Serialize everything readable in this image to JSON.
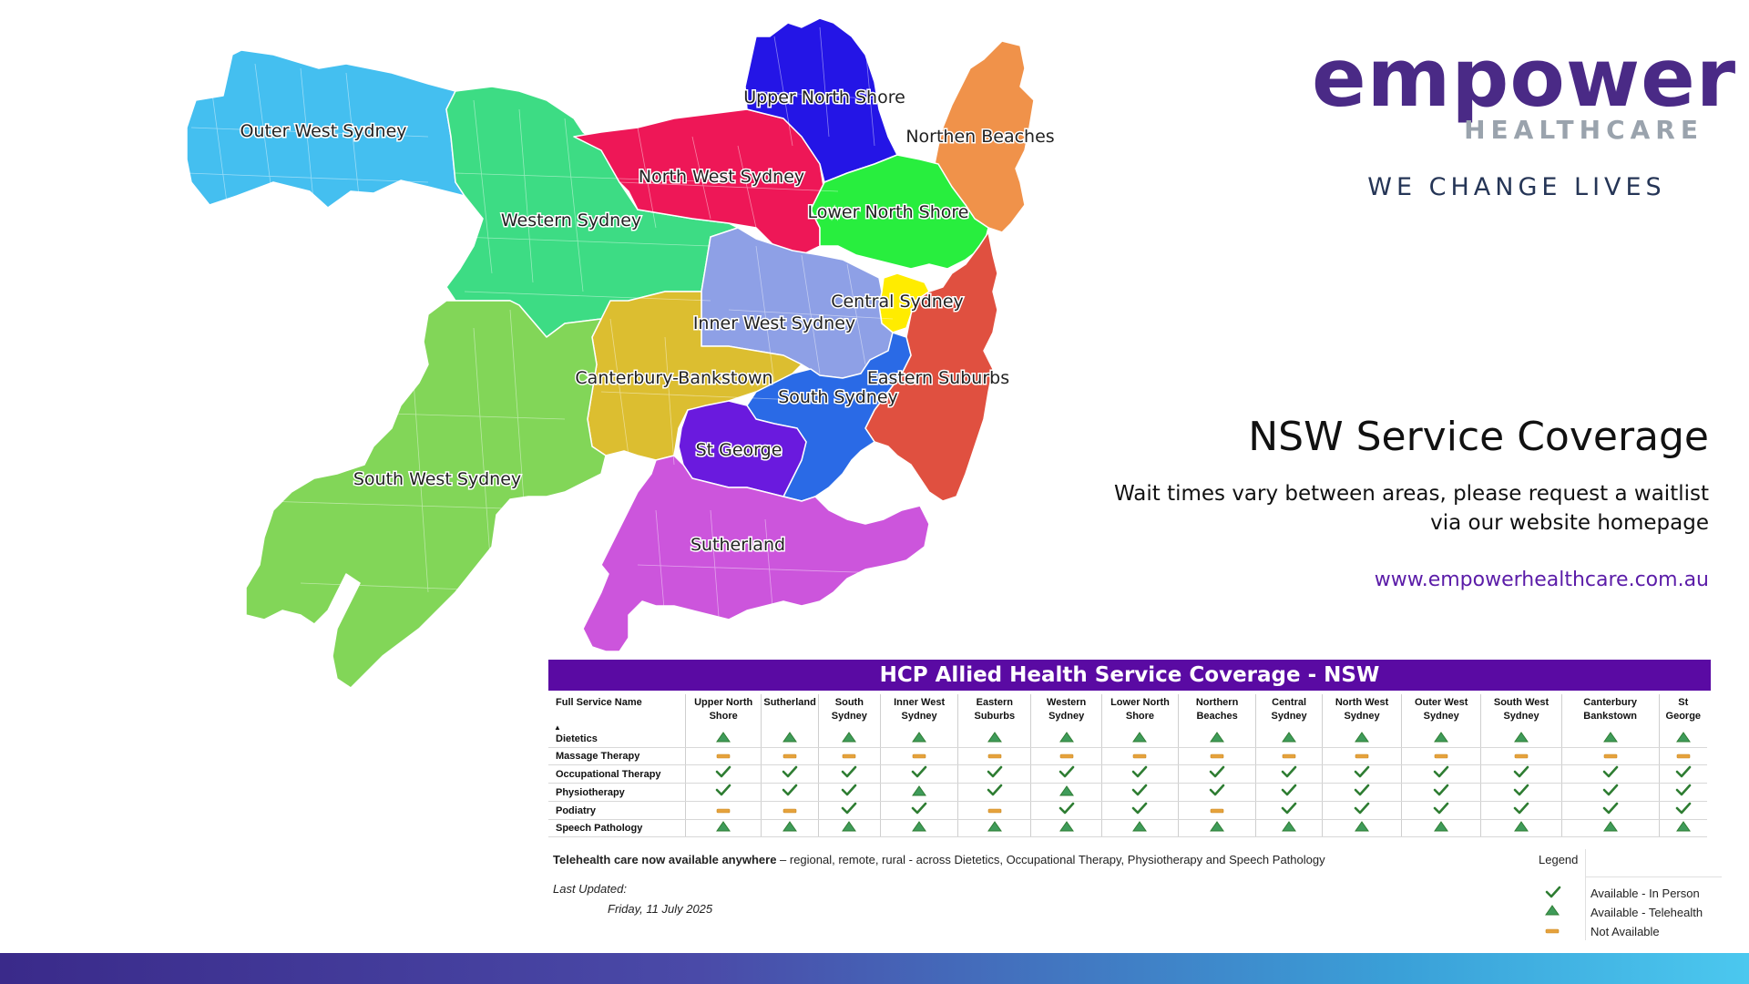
{
  "brand": {
    "logo_word": "empower",
    "logo_sub": "HEALTHCARE",
    "tagline": "WE CHANGE LIVES"
  },
  "map": {
    "regions": [
      {
        "id": "outer-west-sydney",
        "label": "Outer West Sydney",
        "color": "#44bff0"
      },
      {
        "id": "western-sydney",
        "label": "Western Sydney",
        "color": "#3ddc84"
      },
      {
        "id": "north-west-sydney",
        "label": "North West Sydney",
        "color": "#ee1757"
      },
      {
        "id": "upper-north-shore",
        "label": "Upper North Shore",
        "color": "#2415e6"
      },
      {
        "id": "northern-beaches",
        "label": "Northen Beaches",
        "color": "#f0924a"
      },
      {
        "id": "lower-north-shore",
        "label": "Lower North Shore",
        "color": "#28ee3e"
      },
      {
        "id": "central-sydney",
        "label": "Central Sydney",
        "color": "#ffec00"
      },
      {
        "id": "inner-west-sydney",
        "label": "Inner West Sydney",
        "color": "#8ea0e6"
      },
      {
        "id": "eastern-suburbs",
        "label": "Eastern Suburbs",
        "color": "#e05040"
      },
      {
        "id": "south-sydney",
        "label": "South Sydney",
        "color": "#2a6ae6"
      },
      {
        "id": "canterbury-bankstown",
        "label": "Canterbury-Bankstown",
        "color": "#dcbe30"
      },
      {
        "id": "st-george",
        "label": "St George",
        "color": "#6a1ade"
      },
      {
        "id": "south-west-sydney",
        "label": "South West Sydney",
        "color": "#82d658"
      },
      {
        "id": "sutherland",
        "label": "Sutherland",
        "color": "#cc55dc"
      }
    ]
  },
  "info": {
    "headline": "NSW Service Coverage",
    "wait_line1": "Wait times vary between areas, please request a waitlist",
    "wait_line2": "via our website homepage",
    "website": "www.empowerhealthcare.com.au"
  },
  "coverage": {
    "title": "HCP Allied Health Service Coverage - NSW",
    "first_col_header": "Full Service Name",
    "columns": [
      "Upper North Shore",
      "Sutherland",
      "South Sydney",
      "Inner West Sydney",
      "Eastern Suburbs",
      "Western Sydney",
      "Lower North Shore",
      "Northern Beaches",
      "Central Sydney",
      "North West Sydney",
      "Outer West Sydney",
      "South West Sydney",
      "Canterbury Bankstown",
      "St George"
    ],
    "rows": [
      {
        "service": "Dietetics",
        "values": [
          "telehealth",
          "telehealth",
          "telehealth",
          "telehealth",
          "telehealth",
          "telehealth",
          "telehealth",
          "telehealth",
          "telehealth",
          "telehealth",
          "telehealth",
          "telehealth",
          "telehealth",
          "telehealth"
        ]
      },
      {
        "service": "Massage Therapy",
        "values": [
          "not-available",
          "not-available",
          "not-available",
          "not-available",
          "not-available",
          "not-available",
          "not-available",
          "not-available",
          "not-available",
          "not-available",
          "not-available",
          "not-available",
          "not-available",
          "not-available"
        ]
      },
      {
        "service": "Occupational Therapy",
        "values": [
          "in-person",
          "in-person",
          "in-person",
          "in-person",
          "in-person",
          "in-person",
          "in-person",
          "in-person",
          "in-person",
          "in-person",
          "in-person",
          "in-person",
          "in-person",
          "in-person"
        ]
      },
      {
        "service": "Physiotherapy",
        "values": [
          "in-person",
          "in-person",
          "in-person",
          "telehealth",
          "in-person",
          "telehealth",
          "in-person",
          "in-person",
          "in-person",
          "in-person",
          "in-person",
          "in-person",
          "in-person",
          "in-person"
        ]
      },
      {
        "service": "Podiatry",
        "values": [
          "not-available",
          "not-available",
          "in-person",
          "in-person",
          "not-available",
          "in-person",
          "in-person",
          "not-available",
          "in-person",
          "in-person",
          "in-person",
          "in-person",
          "in-person",
          "in-person"
        ]
      },
      {
        "service": "Speech Pathology",
        "values": [
          "telehealth",
          "telehealth",
          "telehealth",
          "telehealth",
          "telehealth",
          "telehealth",
          "telehealth",
          "telehealth",
          "telehealth",
          "telehealth",
          "telehealth",
          "telehealth",
          "telehealth",
          "telehealth"
        ]
      }
    ],
    "colors": {
      "in-person": "#2e7d32",
      "telehealth": "#2e7d32",
      "not-available": "#e6a23c"
    }
  },
  "notes": {
    "telehealth_bold": "Telehealth care now available anywhere",
    "telehealth_rest": " – regional, remote, rural - across Dietetics, Occupational Therapy, Physiotherapy and Speech Pathology",
    "last_updated_label": "Last Updated:",
    "last_updated_date": "Friday, 11 July 2025"
  },
  "legend": {
    "title": "Legend",
    "items": [
      {
        "key": "in-person",
        "label": "Available - In Person"
      },
      {
        "key": "telehealth",
        "label": "Available - Telehealth"
      },
      {
        "key": "not-available",
        "label": "Not Available"
      }
    ]
  }
}
